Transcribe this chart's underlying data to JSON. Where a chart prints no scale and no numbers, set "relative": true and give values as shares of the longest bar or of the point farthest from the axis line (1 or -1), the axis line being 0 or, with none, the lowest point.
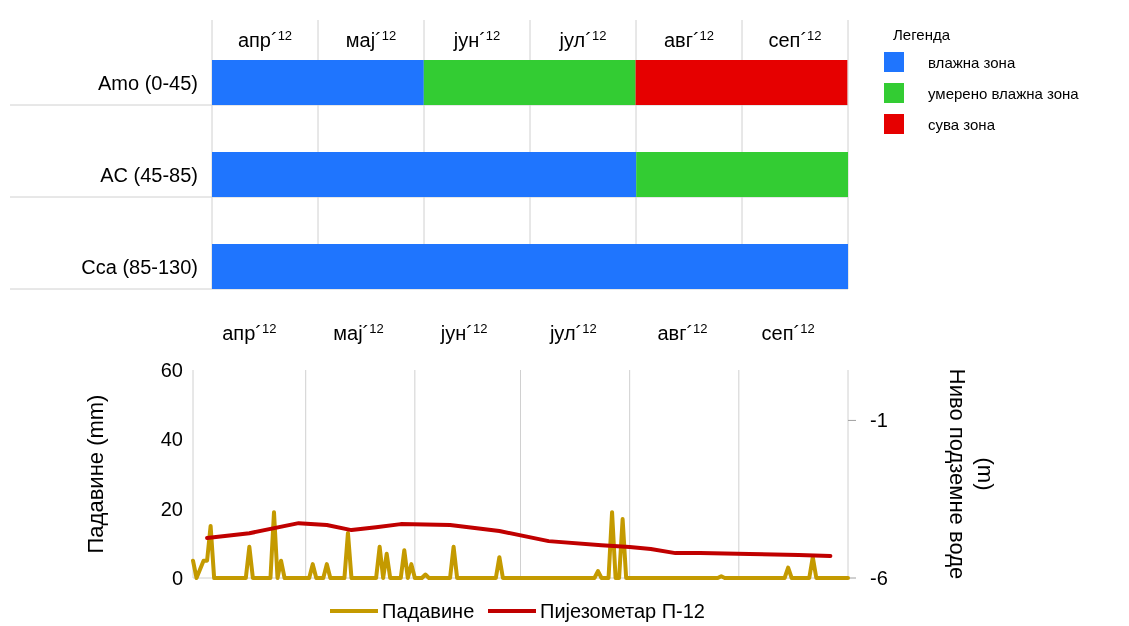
{
  "chart_data": [
    {
      "type": "bar",
      "orientation": "horizontal",
      "stacked": true,
      "categories": [
        "Amo (0-45)",
        "AC (45-85)",
        "Cca (85-130)"
      ],
      "relative": true,
      "annotations": [
        "апр´$^{12}$",
        "мај´$^{12}$",
        "јун´$^{12}$",
        "јул´$^{12}$",
        "авг´$^{12}$",
        "сеп´$^{12}$"
      ],
      "grid": "x",
      "legend": "right",
      "legend_title": "Легенда",
      "series": [
        {
          "name": "влажна зона",
          "color": "#1f75fe",
          "values": [
            0.333,
            0.667,
            1
          ]
        },
        {
          "name": "умерено влажна зона",
          "color": "#33cc33",
          "values": [
            0.333,
            0.333,
            0
          ]
        },
        {
          "name": "сува зона",
          "color": "#e60000",
          "values": [
            0.333,
            0,
            0
          ]
        }
      ]
    },
    {
      "type": "line",
      "xlim": [
        "2012-03-30",
        "2012-10-02"
      ],
      "xticks": [
        {
          "value": "2012-04-15",
          "label": "апр´$^{12}$"
        },
        {
          "value": "2012-05-16",
          "label": "мај´$^{12}$"
        },
        {
          "value": "2012-06-15",
          "label": "јун´$^{12}$"
        },
        {
          "value": "2012-07-16",
          "label": "јул´$^{12}$"
        },
        {
          "value": "2012-08-16",
          "label": "авг´$^{12}$"
        },
        {
          "value": "2012-09-15",
          "label": "сеп´$^{12}$"
        },
        {
          "value": "2012-05-01",
          "label": null
        },
        {
          "value": "2012-06-01",
          "label": null
        },
        {
          "value": "2012-07-01",
          "label": null
        },
        {
          "value": "2012-08-01",
          "label": null
        },
        {
          "value": "2012-09-01",
          "label": null
        }
      ],
      "ylim": [
        0,
        60
      ],
      "yticks": [
        0,
        20,
        40,
        60
      ],
      "y2lim": [
        -6,
        0.6
      ],
      "y2ticks": [
        -6,
        -1
      ],
      "ylabel": "Падавине (mm)",
      "y2label": "Ниво подземне воде (m)",
      "grid": "x",
      "legend": "bottom",
      "marker": "none",
      "line_style": "solid",
      "series": [
        {
          "name": "Падавине",
          "color": "#c49a00",
          "x": [
            "2012-03-30",
            "2012-03-31",
            "2012-04-02",
            "2012-04-03",
            "2012-04-04",
            "2012-04-05",
            "2012-04-14",
            "2012-04-15",
            "2012-04-16",
            "2012-04-21",
            "2012-04-22",
            "2012-04-23",
            "2012-04-24",
            "2012-04-25",
            "2012-05-02",
            "2012-05-03",
            "2012-05-04",
            "2012-05-06",
            "2012-05-07",
            "2012-05-08",
            "2012-05-12",
            "2012-05-13",
            "2012-05-14",
            "2012-05-21",
            "2012-05-22",
            "2012-05-23",
            "2012-05-24",
            "2012-05-25",
            "2012-05-28",
            "2012-05-29",
            "2012-05-30",
            "2012-05-31",
            "2012-06-01",
            "2012-06-03",
            "2012-06-04",
            "2012-06-05",
            "2012-06-11",
            "2012-06-12",
            "2012-06-13",
            "2012-06-24",
            "2012-06-25",
            "2012-06-26",
            "2012-07-22",
            "2012-07-23",
            "2012-07-24",
            "2012-07-26",
            "2012-07-27",
            "2012-07-28",
            "2012-07-29",
            "2012-07-30",
            "2012-07-31",
            "2012-08-26",
            "2012-08-27",
            "2012-08-28",
            "2012-09-14",
            "2012-09-15",
            "2012-09-16",
            "2012-09-21",
            "2012-09-22",
            "2012-09-23",
            "2012-10-02"
          ],
          "values": [
            5,
            0,
            5,
            5,
            15,
            0,
            0,
            9,
            0,
            0,
            19,
            0,
            5,
            0,
            0,
            4,
            0,
            0,
            4,
            0,
            0,
            13,
            0,
            0,
            9,
            0,
            7,
            0,
            0,
            8,
            0,
            4,
            0,
            0,
            1,
            0,
            0,
            9,
            0,
            0,
            6,
            0,
            0,
            2,
            0,
            0,
            19,
            0,
            0,
            17,
            0,
            0,
            0.5,
            0,
            0,
            3,
            0,
            0,
            6,
            0,
            0
          ]
        },
        {
          "name": "Пијезометар П-12",
          "color": "#c00000",
          "axis": "y2",
          "x": [
            "2012-04-03",
            "2012-04-15",
            "2012-04-29",
            "2012-05-07",
            "2012-05-14",
            "2012-05-21",
            "2012-05-28",
            "2012-06-11",
            "2012-06-25",
            "2012-07-09",
            "2012-07-24",
            "2012-08-01",
            "2012-08-07",
            "2012-08-14",
            "2012-08-21",
            "2012-09-04",
            "2012-09-18",
            "2012-09-27"
          ],
          "values": [
            -4.73,
            -4.58,
            -4.26,
            -4.32,
            -4.48,
            -4.39,
            -4.29,
            -4.32,
            -4.51,
            -4.83,
            -4.96,
            -5.02,
            -5.08,
            -5.21,
            -5.21,
            -5.24,
            -5.27,
            -5.3
          ]
        }
      ]
    }
  ]
}
